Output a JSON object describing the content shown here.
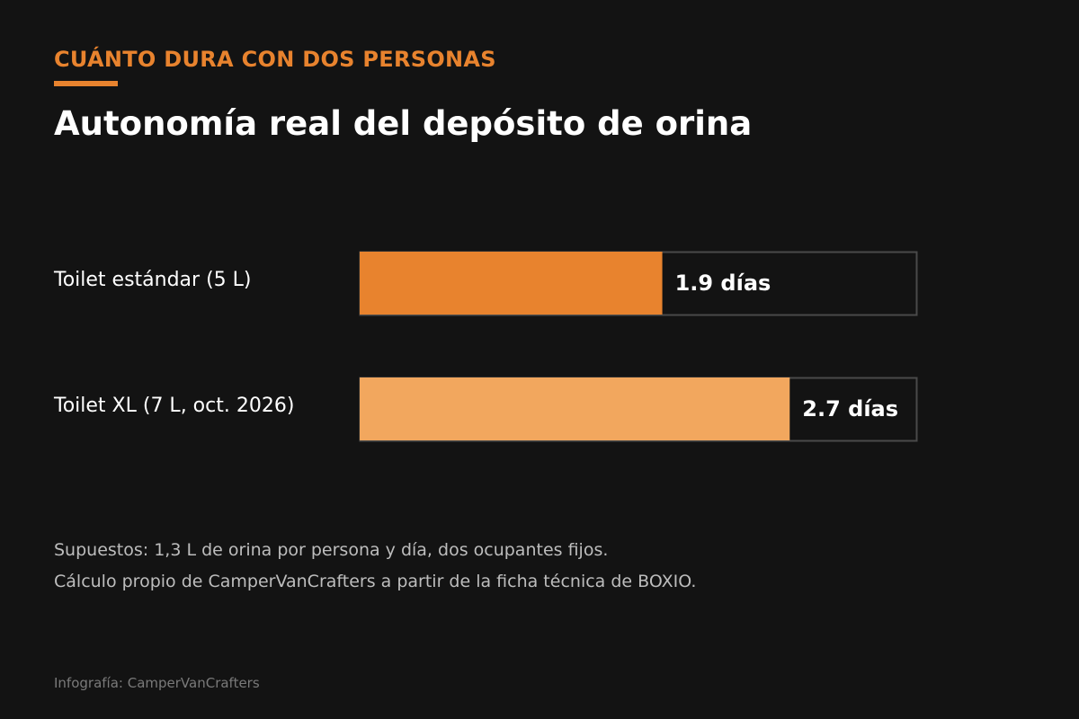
{
  "chart_data": {
    "type": "bar",
    "orientation": "horizontal",
    "eyebrow": "CUÁNTO DURA CON DOS PERSONAS",
    "title": "Autonomía real del depósito de orina",
    "categories": [
      "Toilet estándar (5 L)",
      "Toilet XL (7 L, oct. 2026)"
    ],
    "values": [
      1.9,
      2.7
    ],
    "value_labels": [
      "1.9 días",
      "2.7 días"
    ],
    "bar_colors": [
      "#e8832e",
      "#f2a75e"
    ],
    "xlim": [
      0,
      3.5
    ],
    "grid": false,
    "legend": "none"
  },
  "notes": [
    "Supuestos: 1,3 L de orina por persona y día, dos ocupantes fijos.",
    "Cálculo propio de CamperVanCrafters a partir de la ficha técnica de BOXIO."
  ],
  "credit": "Infografía: CamperVanCrafters",
  "colors": {
    "background": "#131313",
    "accent": "#e8832e",
    "track_border": "#4a4a4a",
    "note_text": "#bdbdbd",
    "credit_text": "#7a7a7a"
  }
}
